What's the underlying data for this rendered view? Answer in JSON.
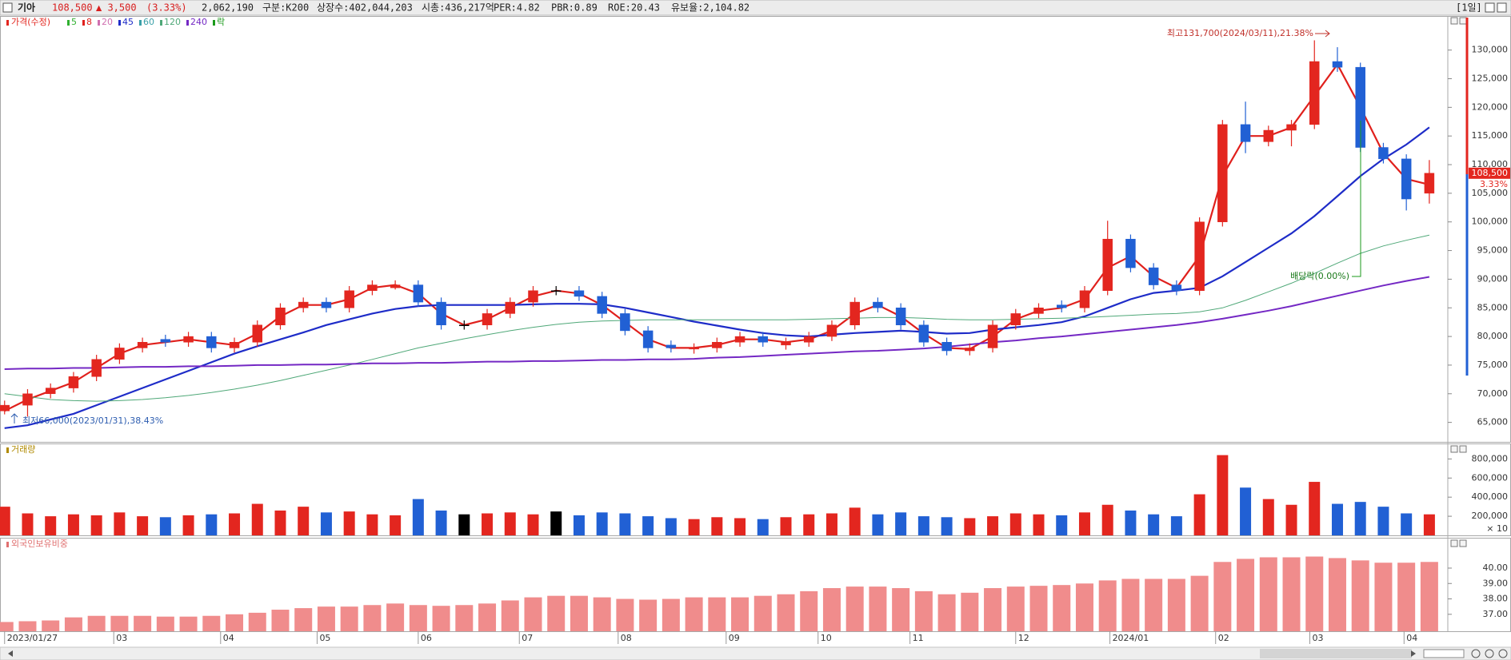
{
  "header": {
    "name": "기아",
    "price": "108,500",
    "change": "▲ 3,500",
    "change_pct": "(3.33%)",
    "volume": "2,062,190",
    "group": "구분:K200",
    "shares": "상장수:402,044,203",
    "market_cap": "시총:436,217억",
    "per": "PER:4.82",
    "pbr": "PBR:0.89",
    "roe": "ROE:20.43",
    "reserve": "유보율:2,104.82",
    "period": "[1일]"
  },
  "chart_data": [
    {
      "type": "candlestick",
      "title": "가격(수정)",
      "event_label": "락",
      "event_color": "#1a9a1a",
      "up_color": "#e3261f",
      "down_color": "#2160d4",
      "flat_color": "#000000",
      "xlim": [
        -0.2,
        62.7
      ],
      "ylim": [
        61600,
        135950
      ],
      "yticks": [
        {
          "value": 65000,
          "label": "65,000"
        },
        {
          "value": 70000,
          "label": "70,000"
        },
        {
          "value": 75000,
          "label": "75,000"
        },
        {
          "value": 80000,
          "label": "80,000"
        },
        {
          "value": 85000,
          "label": "85,000"
        },
        {
          "value": 90000,
          "label": "90,000"
        },
        {
          "value": 95000,
          "label": "95,000"
        },
        {
          "value": 100000,
          "label": "100,000"
        },
        {
          "value": 105000,
          "label": "105,000"
        },
        {
          "value": 110000,
          "label": "110,000"
        },
        {
          "value": 115000,
          "label": "115,000"
        },
        {
          "value": 120000,
          "label": "120,000"
        },
        {
          "value": 125000,
          "label": "125,000"
        },
        {
          "value": 130000,
          "label": "130,000"
        }
      ],
      "grid": false,
      "open": [
        67000,
        68000,
        70000,
        71000,
        73000,
        76000,
        78000,
        79500,
        79000,
        80000,
        78000,
        79000,
        82000,
        85000,
        86000,
        85000,
        88000,
        88500,
        89000,
        86000,
        82000,
        82000,
        84000,
        86000,
        88000,
        88000,
        87000,
        84000,
        81000,
        78500,
        77800,
        78000,
        79000,
        80000,
        78500,
        79000,
        80000,
        82000,
        86000,
        85000,
        82000,
        79000,
        77500,
        78000,
        82000,
        84000,
        85500,
        85000,
        88000,
        97000,
        92000,
        89000,
        88000,
        100000,
        117000,
        114000,
        116000,
        117000,
        128000,
        127000,
        113000,
        111000,
        105000
      ],
      "high": [
        68800,
        70800,
        71800,
        73800,
        76800,
        78800,
        79800,
        80300,
        80800,
        80800,
        79800,
        82800,
        85800,
        86800,
        86800,
        88800,
        89800,
        89800,
        89800,
        86800,
        82800,
        84800,
        86800,
        88800,
        88800,
        88800,
        87800,
        84800,
        81800,
        79300,
        78800,
        79800,
        80800,
        80800,
        79800,
        80800,
        82800,
        86800,
        86800,
        85800,
        82800,
        79800,
        78800,
        82800,
        84800,
        85800,
        86300,
        88800,
        100200,
        97800,
        92800,
        89800,
        100800,
        117800,
        121000,
        116800,
        117800,
        131700,
        130500,
        127800,
        113800,
        111800,
        110800
      ],
      "low": [
        66400,
        66000,
        69200,
        70200,
        72200,
        75200,
        77200,
        78200,
        78200,
        77200,
        77200,
        78200,
        81200,
        84200,
        84200,
        84200,
        87200,
        88200,
        85200,
        81200,
        81200,
        81200,
        83200,
        85200,
        87200,
        86200,
        83200,
        80200,
        77200,
        77200,
        77000,
        77200,
        78200,
        78200,
        77700,
        78200,
        79200,
        81200,
        84200,
        81200,
        78200,
        76700,
        76700,
        77200,
        81200,
        83200,
        84200,
        84200,
        87200,
        91200,
        88200,
        87200,
        87200,
        99200,
        112000,
        113200,
        113200,
        116200,
        126200,
        112200,
        110200,
        102000,
        103200
      ],
      "close": [
        68000,
        70000,
        71000,
        73000,
        76000,
        78000,
        79000,
        79000,
        80000,
        78000,
        79000,
        82000,
        85000,
        86000,
        85000,
        88000,
        89000,
        89000,
        86000,
        82000,
        82000,
        84000,
        86000,
        88000,
        88000,
        87000,
        84000,
        81000,
        78000,
        78000,
        78000,
        79000,
        80000,
        79000,
        79000,
        80000,
        82000,
        86000,
        85000,
        82000,
        79000,
        77500,
        78000,
        82000,
        84000,
        85000,
        85000,
        88000,
        97000,
        92000,
        89000,
        88000,
        100000,
        117000,
        114000,
        116000,
        117000,
        128000,
        127000,
        113000,
        111000,
        104000,
        108500
      ],
      "series": [
        {
          "name": "5",
          "color": "#2fb02f"
        },
        {
          "name": "8",
          "color": "#e0201c",
          "width": 2.2,
          "values": [
            67000,
            69000,
            70500,
            72000,
            74500,
            77000,
            78500,
            79000,
            79500,
            79000,
            78500,
            80500,
            83500,
            85500,
            85500,
            86500,
            88500,
            89000,
            87500,
            84000,
            82000,
            83000,
            85000,
            87000,
            88000,
            87500,
            85500,
            82500,
            79500,
            78000,
            78000,
            78500,
            79500,
            79500,
            79000,
            79500,
            81000,
            84000,
            85500,
            83500,
            80500,
            78000,
            77800,
            80000,
            83000,
            84500,
            85000,
            86500,
            92000,
            94000,
            90500,
            88500,
            94000,
            108000,
            115000,
            115000,
            116500,
            122000,
            127500,
            120000,
            112000,
            107500,
            106500
          ]
        },
        {
          "name": "20",
          "color": "#d070b0"
        },
        {
          "name": "45",
          "color": "#1e2cc8",
          "width": 2.2,
          "values": [
            64000,
            64500,
            65500,
            66500,
            68000,
            69500,
            71000,
            72500,
            74000,
            75500,
            77000,
            78300,
            79500,
            80700,
            82000,
            83000,
            84000,
            84800,
            85300,
            85500,
            85500,
            85500,
            85500,
            85600,
            85700,
            85700,
            85600,
            85000,
            84200,
            83400,
            82600,
            81900,
            81200,
            80600,
            80200,
            80000,
            80300,
            80600,
            80800,
            81000,
            80800,
            80500,
            80600,
            81200,
            81600,
            82000,
            82500,
            83500,
            85000,
            86500,
            87600,
            88000,
            88500,
            90500,
            93000,
            95500,
            98000,
            101000,
            104500,
            108000,
            111000,
            113500,
            116500
          ]
        },
        {
          "name": "60",
          "color": "#3aa0a8"
        },
        {
          "name": "120",
          "color": "#4fa878",
          "width": 1,
          "values": [
            70000,
            69500,
            69000,
            68800,
            68700,
            68800,
            69000,
            69300,
            69700,
            70200,
            70800,
            71500,
            72300,
            73200,
            74100,
            75000,
            76000,
            77000,
            78000,
            78800,
            79600,
            80300,
            81000,
            81600,
            82100,
            82500,
            82700,
            82800,
            82900,
            82900,
            82900,
            82900,
            82900,
            82900,
            82900,
            83000,
            83100,
            83200,
            83300,
            83300,
            83200,
            83000,
            82900,
            82900,
            83000,
            83100,
            83200,
            83300,
            83500,
            83700,
            83900,
            84000,
            84300,
            85000,
            86300,
            87800,
            89300,
            91000,
            92800,
            94500,
            95800,
            96800,
            97700
          ]
        },
        {
          "name": "240",
          "color": "#7428c4",
          "width": 2,
          "values": [
            74300,
            74400,
            74400,
            74500,
            74500,
            74600,
            74700,
            74700,
            74800,
            74800,
            74900,
            75000,
            75000,
            75100,
            75100,
            75200,
            75300,
            75300,
            75400,
            75400,
            75500,
            75600,
            75600,
            75700,
            75700,
            75800,
            75900,
            75900,
            76000,
            76000,
            76100,
            76300,
            76400,
            76600,
            76800,
            77000,
            77200,
            77400,
            77500,
            77700,
            77900,
            78200,
            78600,
            79000,
            79300,
            79700,
            80000,
            80400,
            80800,
            81200,
            81600,
            82000,
            82500,
            83100,
            83800,
            84500,
            85300,
            86200,
            87100,
            88000,
            88900,
            89700,
            90400
          ]
        }
      ],
      "annotations": {
        "high": "최고131,700(2024/03/11),21.38%",
        "low": "최저66,000(2023/01/31),38.43%",
        "dividend": "배당락(0.00%)"
      },
      "last_price_label": "108,500",
      "last_change_label": "3.33%"
    },
    {
      "type": "volume",
      "title": "거래량",
      "title_color": "#b08a00",
      "unit_label": "× 10",
      "xlim": [
        -0.2,
        62.7
      ],
      "ylim": [
        0,
        870000
      ],
      "yticks": [
        {
          "value": 200000,
          "label": "200,000"
        },
        {
          "value": 400000,
          "label": "400,000"
        },
        {
          "value": 600000,
          "label": "600,000"
        },
        {
          "value": 800000,
          "label": "800,000"
        }
      ],
      "values": [
        300000,
        230000,
        200000,
        220000,
        210000,
        240000,
        200000,
        190000,
        210000,
        220000,
        230000,
        330000,
        260000,
        300000,
        240000,
        250000,
        220000,
        210000,
        380000,
        260000,
        220000,
        230000,
        240000,
        220000,
        250000,
        210000,
        240000,
        230000,
        200000,
        180000,
        170000,
        190000,
        180000,
        170000,
        190000,
        220000,
        230000,
        290000,
        220000,
        240000,
        200000,
        190000,
        180000,
        200000,
        230000,
        220000,
        210000,
        240000,
        320000,
        260000,
        220000,
        200000,
        430000,
        840000,
        500000,
        380000,
        320000,
        560000,
        330000,
        350000,
        300000,
        230000,
        220000
      ]
    },
    {
      "type": "bar",
      "title": "외국인보유비중",
      "title_color": "#e07070",
      "color": "#f08c8c",
      "xlim": [
        -0.2,
        62.7
      ],
      "ylim": [
        35.9,
        41.4
      ],
      "yticks": [
        {
          "value": 37,
          "label": "37.00"
        },
        {
          "value": 38,
          "label": "38.00"
        },
        {
          "value": 39,
          "label": "39.00"
        },
        {
          "value": 40,
          "label": "40.00"
        }
      ],
      "xticks": [
        {
          "value": 0,
          "label": "2023/01/27"
        },
        {
          "value": 4.75,
          "label": "03"
        },
        {
          "value": 9.4,
          "label": "04"
        },
        {
          "value": 13.6,
          "label": "05"
        },
        {
          "value": 18,
          "label": "06"
        },
        {
          "value": 22.4,
          "label": "07"
        },
        {
          "value": 26.7,
          "label": "08"
        },
        {
          "value": 31.4,
          "label": "09"
        },
        {
          "value": 35.4,
          "label": "10"
        },
        {
          "value": 39.4,
          "label": "11"
        },
        {
          "value": 44,
          "label": "12"
        },
        {
          "value": 48.1,
          "label": "2024/01"
        },
        {
          "value": 52.7,
          "label": "02"
        },
        {
          "value": 56.8,
          "label": "03"
        },
        {
          "value": 60.9,
          "label": "04"
        }
      ],
      "values": [
        36.5,
        36.55,
        36.6,
        36.8,
        36.9,
        36.9,
        36.9,
        36.85,
        36.85,
        36.9,
        37,
        37.1,
        37.3,
        37.4,
        37.5,
        37.5,
        37.6,
        37.7,
        37.6,
        37.55,
        37.6,
        37.7,
        37.9,
        38.1,
        38.2,
        38.2,
        38.1,
        38,
        37.95,
        38,
        38.1,
        38.1,
        38.1,
        38.2,
        38.3,
        38.5,
        38.7,
        38.8,
        38.8,
        38.7,
        38.5,
        38.3,
        38.4,
        38.7,
        38.8,
        38.85,
        38.9,
        39,
        39.2,
        39.3,
        39.3,
        39.3,
        39.5,
        40.4,
        40.6,
        40.7,
        40.7,
        40.75,
        40.65,
        40.5,
        40.35,
        40.35,
        40.4
      ]
    }
  ]
}
